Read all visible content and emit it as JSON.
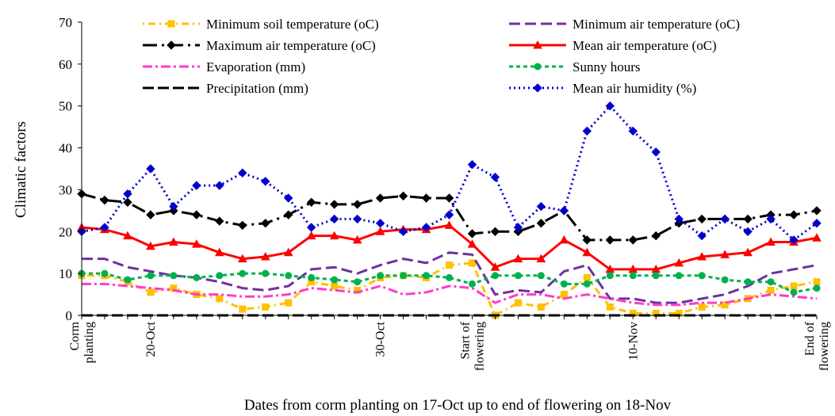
{
  "chart_data": {
    "type": "line",
    "ylabel": "Climatic factors",
    "xlabel": "Dates from corm planting on 17-Oct up to end of flowering on 18-Nov",
    "ylim": [
      0,
      70
    ],
    "yticks": [
      0,
      10,
      20,
      30,
      40,
      50,
      60,
      70
    ],
    "grid": false,
    "legend_position": "top",
    "x": [
      "17-Oct",
      "18-Oct",
      "19-Oct",
      "20-Oct",
      "21-Oct",
      "22-Oct",
      "23-Oct",
      "24-Oct",
      "25-Oct",
      "26-Oct",
      "27-Oct",
      "28-Oct",
      "29-Oct",
      "30-Oct",
      "31-Oct",
      "1-Nov",
      "2-Nov",
      "3-Nov",
      "4-Nov",
      "5-Nov",
      "6-Nov",
      "7-Nov",
      "8-Nov",
      "9-Nov",
      "10-Nov",
      "11-Nov",
      "12-Nov",
      "13-Nov",
      "14-Nov",
      "15-Nov",
      "16-Nov",
      "17-Nov",
      "18-Nov"
    ],
    "x_tick_labels": [
      {
        "x": "17-Oct",
        "lines": [
          "Corm",
          "planting"
        ]
      },
      {
        "x": "20-Oct",
        "lines": [
          "20-Oct"
        ]
      },
      {
        "x": "30-Oct",
        "lines": [
          "30-Oct"
        ]
      },
      {
        "x": "3-Nov",
        "lines": [
          "Start of",
          "flowering"
        ]
      },
      {
        "x": "10-Nov",
        "lines": [
          "10-Nov"
        ]
      },
      {
        "x": "18-Nov",
        "lines": [
          "End of",
          "flowering"
        ]
      }
    ],
    "series": [
      {
        "name": "Minimum soil temperature (oC)",
        "color": "#ffc000",
        "dash": "2,5,9,5",
        "marker": "square",
        "values": [
          9.5,
          9.5,
          8,
          5.5,
          6.5,
          5,
          4,
          1.5,
          2,
          3,
          8,
          7,
          6,
          9,
          9.5,
          9,
          12,
          12.5,
          0,
          3,
          2,
          5,
          9,
          2,
          0.5,
          0.5,
          0.5,
          2,
          2.5,
          4,
          6,
          7,
          8
        ]
      },
      {
        "name": "Minimum air temperature  (oC)",
        "color": "#7030a0",
        "dash": "14,6",
        "marker": "none",
        "values": [
          13.5,
          13.5,
          11.5,
          10.5,
          9.5,
          9,
          8,
          6.5,
          6,
          7,
          11,
          11.5,
          10,
          12,
          13.5,
          12.5,
          15,
          14.5,
          5,
          6,
          5.5,
          10.5,
          12,
          4,
          4,
          3,
          3,
          4,
          5,
          7,
          10,
          11,
          12
        ]
      },
      {
        "name": "Maximum air temperature  (oC)",
        "color": "#000000",
        "dash": "18,6,3,6",
        "marker": "diamond",
        "values": [
          29,
          27.5,
          27,
          24,
          25,
          24,
          22.5,
          21.5,
          22,
          24,
          27,
          26.5,
          26.5,
          28,
          28.5,
          28,
          28,
          19.5,
          20,
          20,
          22,
          25,
          18,
          18,
          18,
          19,
          22,
          23,
          23,
          23,
          24,
          24,
          25
        ]
      },
      {
        "name": "Mean air temperature  (oC)",
        "color": "#ff0000",
        "dash": "",
        "marker": "triangle",
        "values": [
          21,
          20.5,
          19,
          16.5,
          17.5,
          17,
          15,
          13.5,
          14,
          15,
          19,
          19,
          18,
          20,
          20.5,
          20.5,
          21.5,
          17,
          11.5,
          13.5,
          13.5,
          18,
          15,
          11,
          11,
          11,
          12.5,
          14,
          14.5,
          15,
          17.5,
          17.5,
          18.5
        ]
      },
      {
        "name": "Evaporation (mm)",
        "color": "#ff3cc8",
        "dash": "12,4,3,4",
        "marker": "none",
        "values": [
          7.5,
          7.5,
          7,
          6.5,
          6,
          5,
          5,
          4.5,
          4.5,
          5,
          6.5,
          6,
          5.5,
          7,
          5,
          5.5,
          7,
          6.5,
          3,
          5,
          5,
          4,
          5,
          4,
          3,
          2.5,
          2.5,
          3,
          3,
          4,
          5,
          4.5,
          4
        ]
      },
      {
        "name": "Sunny hours",
        "color": "#00b050",
        "dash": "5,4",
        "marker": "circle",
        "values": [
          10,
          10,
          8.5,
          9.5,
          9.5,
          9,
          9.5,
          10,
          10,
          9.5,
          9,
          8.5,
          8,
          9.5,
          9.5,
          9.5,
          9,
          7.5,
          9.5,
          9.5,
          9.5,
          7.5,
          7.5,
          9.5,
          9.5,
          9.5,
          9.5,
          9.5,
          8.5,
          8,
          8,
          5.5,
          6.5
        ]
      },
      {
        "name": "Precipitation  (mm)",
        "color": "#000000",
        "dash": "14,5",
        "marker": "none",
        "values": [
          0,
          0,
          0,
          0,
          0,
          0,
          0,
          0,
          0,
          0,
          0,
          0,
          0,
          0,
          0,
          0,
          0,
          0,
          0,
          0,
          0,
          0,
          0,
          0,
          0,
          0,
          0,
          0,
          0,
          0,
          0,
          0,
          0
        ]
      },
      {
        "name": "Mean air humidity (%)",
        "color": "#0000cc",
        "dash": "2,4",
        "marker": "diamond",
        "values": [
          20,
          21,
          29,
          35,
          26,
          31,
          31,
          34,
          32,
          28,
          21,
          23,
          23,
          22,
          20,
          21,
          24,
          36,
          33,
          21,
          26,
          25,
          44,
          50,
          44,
          39,
          23,
          19,
          23,
          20,
          23,
          18,
          22
        ]
      }
    ]
  }
}
